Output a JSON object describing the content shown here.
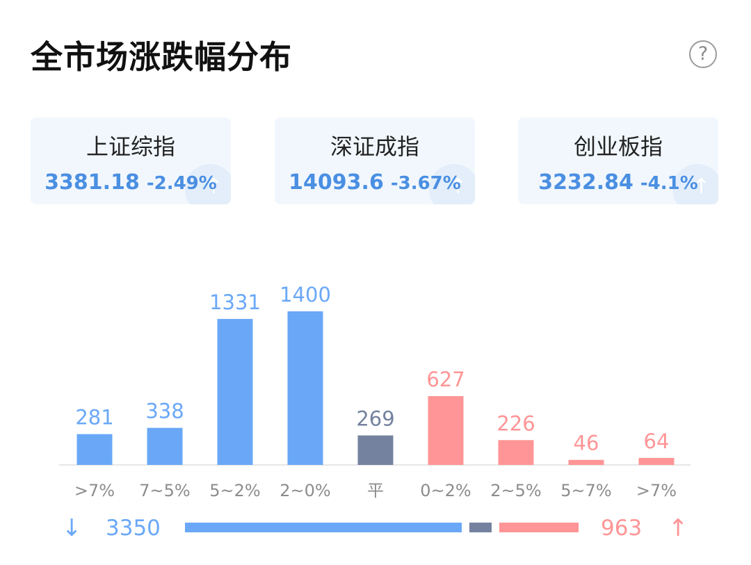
{
  "header": {
    "title": "全市场涨跌幅分布",
    "help_label": "?",
    "help_icon": "question-circle-icon"
  },
  "indices": [
    {
      "name": "上证综指",
      "value": "3381.18",
      "change": "-2.49%"
    },
    {
      "name": "深证成指",
      "value": "14093.6",
      "change": "-3.67%"
    },
    {
      "name": "创业板指",
      "value": "3232.84",
      "change": "-4.1%"
    }
  ],
  "colors": {
    "down": "#6aa8f7",
    "flat": "#74829f",
    "up": "#ff9596",
    "index_text": "#4a8fe2"
  },
  "chart_data": {
    "type": "bar",
    "categories": [
      ">7%",
      "7~5%",
      "5~2%",
      "2~0%",
      "平",
      "0~2%",
      "2~5%",
      "5~7%",
      ">7%"
    ],
    "values": [
      281,
      338,
      1331,
      1400,
      269,
      627,
      226,
      46,
      64
    ],
    "groups": [
      "down",
      "down",
      "down",
      "down",
      "flat",
      "up",
      "up",
      "up",
      "up"
    ],
    "ylim": [
      0,
      1400
    ]
  },
  "summary": {
    "down_count": "3350",
    "flat_count": 269,
    "up_count": "963",
    "down_icon": "arrow-down-icon",
    "up_icon": "arrow-up-icon"
  }
}
